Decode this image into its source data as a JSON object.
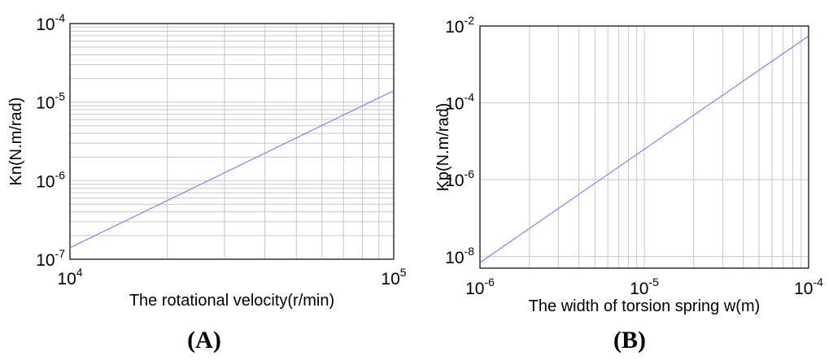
{
  "chart_data": [
    {
      "type": "line",
      "panel_label": "(A)",
      "xlabel": "The rotational velocity(r/min)",
      "ylabel": "Kn(N.m/rad)",
      "xscale": "log",
      "yscale": "log",
      "xlim": [
        10000,
        100000
      ],
      "ylim": [
        1e-07,
        0.0001
      ],
      "grid": true,
      "x_ticks": [
        {
          "base": "10",
          "exp": "4"
        },
        {
          "base": "10",
          "exp": "5"
        }
      ],
      "y_ticks": [
        {
          "base": "10",
          "exp": "-7"
        },
        {
          "base": "10",
          "exp": "-6"
        },
        {
          "base": "10",
          "exp": "-5"
        },
        {
          "base": "10",
          "exp": "-4"
        }
      ],
      "series": [
        {
          "color": "#6f6fff",
          "x": [
            10000,
            100000
          ],
          "y": [
            1.4e-07,
            1.4e-05
          ]
        }
      ]
    },
    {
      "type": "line",
      "panel_label": "(B)",
      "xlabel": "The width of torsion spring w(m)",
      "ylabel": "Kp(N.m/rad)",
      "xscale": "log",
      "yscale": "log",
      "xlim": [
        1e-06,
        0.0001
      ],
      "ylim": [
        5e-09,
        0.01
      ],
      "grid": true,
      "x_ticks": [
        {
          "base": "10",
          "exp": "-6"
        },
        {
          "base": "10",
          "exp": "-5"
        },
        {
          "base": "10",
          "exp": "-4"
        }
      ],
      "y_ticks": [
        {
          "base": "10",
          "exp": "-8"
        },
        {
          "base": "10",
          "exp": "-6"
        },
        {
          "base": "10",
          "exp": "-4"
        },
        {
          "base": "10",
          "exp": "-2"
        }
      ],
      "series": [
        {
          "color": "#6f6fff",
          "x": [
            1e-06,
            0.0001
          ],
          "y": [
            7e-09,
            0.0055
          ]
        }
      ]
    }
  ]
}
